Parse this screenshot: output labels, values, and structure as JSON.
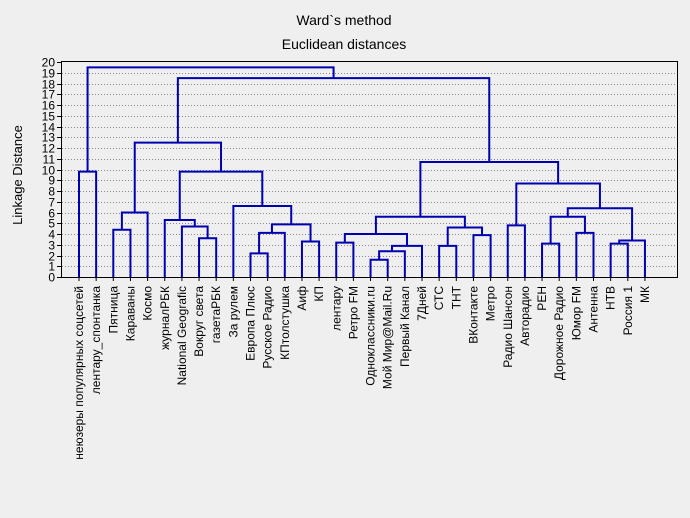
{
  "chart_data": {
    "type": "dendrogram",
    "title": "Ward`s method",
    "subtitle": "Euclidean distances",
    "ylabel": "Linkage Distance",
    "ylim": [
      0,
      20
    ],
    "yticks": [
      0,
      1,
      2,
      3,
      4,
      5,
      6,
      7,
      8,
      9,
      10,
      11,
      12,
      13,
      14,
      15,
      16,
      17,
      18,
      19,
      20
    ],
    "grid": true,
    "leaves": [
      "неюзеры популярных соцсетей",
      "лентару_спонтанка",
      "Пятница",
      "Караваны",
      "Космо",
      "журналРБК",
      "National Geografic",
      "Вокруг света",
      "газетаРБК",
      "За рулем",
      "Европа Плюс",
      "Русское Радио",
      "КПтолстушка",
      "Аиф",
      "КП",
      "лентару",
      "Ретро FM",
      "Одноклассники.ru",
      "Мой Мир@Mail.Ru",
      "Первый Канал",
      "7Дней",
      "СТС",
      "ТНТ",
      "ВКонтакте",
      "Метро",
      "Радио Шансон",
      "Авторадио",
      "РЕН",
      "Дорожное Радио",
      "Юмор FM",
      "Антенна",
      "НТВ",
      "Россия 1",
      "МК"
    ],
    "merges": [
      {
        "a": "L0",
        "b": "L1",
        "h": 9.8
      },
      {
        "a": "L2",
        "b": "L3",
        "h": 4.4
      },
      {
        "a": "M1",
        "b": "L4",
        "h": 6.0
      },
      {
        "a": "L7",
        "b": "L8",
        "h": 3.6
      },
      {
        "a": "L6",
        "b": "M3",
        "h": 4.7
      },
      {
        "a": "L5",
        "b": "M4",
        "h": 5.3
      },
      {
        "a": "L10",
        "b": "L11",
        "h": 2.2
      },
      {
        "a": "M6",
        "b": "L12",
        "h": 4.1
      },
      {
        "a": "L13",
        "b": "L14",
        "h": 3.3
      },
      {
        "a": "M7",
        "b": "M8",
        "h": 4.9
      },
      {
        "a": "L9",
        "b": "M9",
        "h": 6.6
      },
      {
        "a": "M5",
        "b": "M10",
        "h": 9.8
      },
      {
        "a": "M2",
        "b": "M11",
        "h": 12.5
      },
      {
        "a": "L17",
        "b": "L18",
        "h": 1.6
      },
      {
        "a": "M13",
        "b": "L19",
        "h": 2.4
      },
      {
        "a": "M14",
        "b": "L20",
        "h": 2.9
      },
      {
        "a": "L15",
        "b": "L16",
        "h": 3.2
      },
      {
        "a": "M16",
        "b": "M15",
        "h": 4.0
      },
      {
        "a": "L21",
        "b": "L22",
        "h": 2.9
      },
      {
        "a": "L23",
        "b": "L24",
        "h": 3.9
      },
      {
        "a": "M18",
        "b": "M19",
        "h": 4.6
      },
      {
        "a": "M17",
        "b": "M20",
        "h": 5.6
      },
      {
        "a": "L25",
        "b": "L26",
        "h": 4.8
      },
      {
        "a": "L27",
        "b": "L28",
        "h": 3.1
      },
      {
        "a": "L29",
        "b": "L30",
        "h": 4.1
      },
      {
        "a": "M23",
        "b": "M24",
        "h": 5.6
      },
      {
        "a": "L31",
        "b": "L32",
        "h": 3.1
      },
      {
        "a": "M26",
        "b": "L33",
        "h": 3.4
      },
      {
        "a": "M25",
        "b": "M27",
        "h": 6.4
      },
      {
        "a": "M22",
        "b": "M28",
        "h": 8.7
      },
      {
        "a": "M21",
        "b": "M29",
        "h": 10.7
      },
      {
        "a": "M12",
        "b": "M30",
        "h": 18.5
      },
      {
        "a": "M0",
        "b": "M31",
        "h": 19.5
      }
    ]
  }
}
